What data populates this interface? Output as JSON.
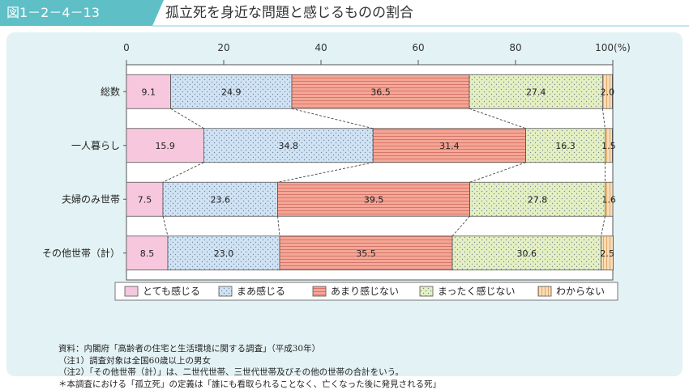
{
  "figure": {
    "number": "図1－2－4－13",
    "title": "孤立死を身近な問題と感じるものの割合"
  },
  "chart_data": {
    "type": "bar",
    "orientation": "horizontal",
    "stacked": true,
    "title": "孤立死を身近な問題と感じるものの割合",
    "xlim": [
      0,
      100
    ],
    "x_ticks": [
      "0",
      "20",
      "40",
      "60",
      "80",
      "100(%)"
    ],
    "categories": [
      "総数",
      "一人暮らし",
      "夫婦のみ世帯",
      "その他世帯（計）"
    ],
    "series": [
      {
        "name": "とても感じる",
        "color": "#f7c8dd",
        "pattern": "solid",
        "values": [
          9.1,
          15.9,
          7.5,
          8.5
        ],
        "labels": [
          "9.1",
          "15.9",
          "7.5",
          "8.5"
        ]
      },
      {
        "name": "まあ感じる",
        "color": "#cfe3f5",
        "pattern": "dots",
        "values": [
          24.9,
          34.8,
          23.6,
          23.0
        ],
        "labels": [
          "24.9",
          "34.8",
          "23.6",
          "23.0"
        ]
      },
      {
        "name": "あまり感じない",
        "color": "#f4a796",
        "pattern": "hlines",
        "values": [
          36.5,
          31.4,
          39.5,
          35.5
        ],
        "labels": [
          "36.5",
          "31.4",
          "39.5",
          "35.5"
        ]
      },
      {
        "name": "まったく感じない",
        "color": "#e5f0c2",
        "pattern": "dots",
        "values": [
          27.4,
          16.3,
          27.8,
          30.6
        ],
        "labels": [
          "27.4",
          "16.3",
          "27.8",
          "30.6"
        ]
      },
      {
        "name": "わからない",
        "color": "#f9dcb6",
        "pattern": "vlines",
        "values": [
          2.0,
          1.5,
          1.6,
          2.5
        ],
        "labels": [
          "2.0",
          "1.5",
          "1.6",
          "2.5"
        ]
      }
    ],
    "connector_lines": true,
    "legend_position": "bottom"
  },
  "notes": [
    "資料：内閣府「高齢者の住宅と生活環境に関する調査」（平成30年）",
    "（注1）調査対象は全国60歳以上の男女",
    "（注2）「その他世帯（計）」は、二世代世帯、三世代世帯及びその他の世帯の合計をいう。",
    "＊本調査における「孤立死」の定義は「誰にも看取られることなく、亡くなった後に発見される死」"
  ]
}
